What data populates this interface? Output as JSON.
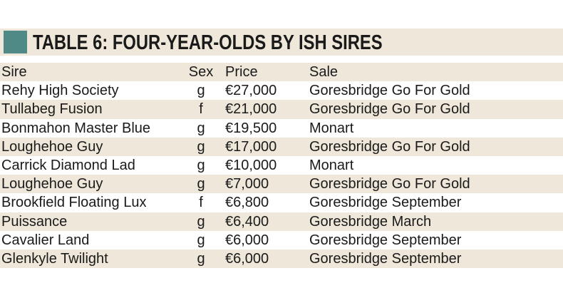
{
  "title": "TABLE 6: FOUR-YEAR-OLDS BY ISH SIRES",
  "colors": {
    "accent": "#4f8a86",
    "band": "#efe8da"
  },
  "columns": {
    "sire": "Sire",
    "sex": "Sex",
    "price": "Price",
    "sale": "Sale"
  },
  "rows": [
    {
      "sire": "Rehy High Society",
      "sex": "g",
      "price": "€27,000",
      "sale": "Goresbridge Go For Gold"
    },
    {
      "sire": "Tullabeg Fusion",
      "sex": "f",
      "price": "€21,000",
      "sale": "Goresbridge Go For Gold"
    },
    {
      "sire": "Bonmahon Master Blue",
      "sex": "g",
      "price": "€19,500",
      "sale": "Monart"
    },
    {
      "sire": "Loughehoe Guy",
      "sex": "g",
      "price": "€17,000",
      "sale": "Goresbridge Go For Gold"
    },
    {
      "sire": "Carrick Diamond Lad",
      "sex": "g",
      "price": "€10,000",
      "sale": "Monart"
    },
    {
      "sire": "Loughehoe Guy",
      "sex": "g",
      "price": "€7,000",
      "sale": "Goresbridge Go For Gold"
    },
    {
      "sire": "Brookfield Floating Lux",
      "sex": "f",
      "price": "€6,800",
      "sale": "Goresbridge September"
    },
    {
      "sire": "Puissance",
      "sex": "g",
      "price": "€6,400",
      "sale": "Goresbridge March"
    },
    {
      "sire": "Cavalier Land",
      "sex": "g",
      "price": "€6,000",
      "sale": "Goresbridge September"
    },
    {
      "sire": "Glenkyle Twilight",
      "sex": "g",
      "price": "€6,000",
      "sale": "Goresbridge September"
    }
  ]
}
